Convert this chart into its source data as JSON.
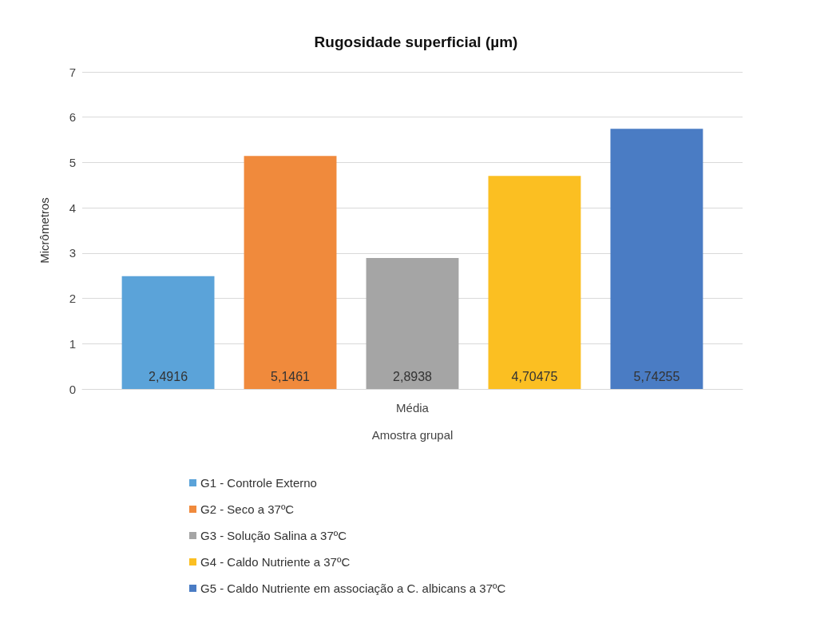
{
  "chart_data": {
    "type": "bar",
    "title": "Rugosidade superficial (µm)",
    "xlabel": "Amostra grupal",
    "ylabel": "Micrômetros",
    "categories": [
      "Média"
    ],
    "series": [
      {
        "name": "G1 - Controle Externo",
        "color": "#5ba3d9",
        "values": [
          2.4916
        ],
        "value_labels": [
          "2,4916"
        ]
      },
      {
        "name": "G2 - Seco a 37ºC",
        "color": "#f08a3c",
        "values": [
          5.1461
        ],
        "value_labels": [
          "5,1461"
        ]
      },
      {
        "name": "G3 - Solução Salina a 37ºC",
        "color": "#a5a5a5",
        "values": [
          2.8938
        ],
        "value_labels": [
          "2,8938"
        ]
      },
      {
        "name": "G4 - Caldo Nutriente a 37ºC",
        "color": "#fbbf22",
        "values": [
          4.70475
        ],
        "value_labels": [
          "4,70475"
        ]
      },
      {
        "name": "G5 - Caldo Nutriente em associação a C. albicans a 37ºC",
        "color": "#4a7cc4",
        "values": [
          5.74255
        ],
        "value_labels": [
          "5,74255"
        ]
      }
    ],
    "ylim": [
      0,
      7
    ],
    "yticks": [
      0,
      1,
      2,
      3,
      4,
      5,
      6,
      7
    ],
    "grid": "y",
    "legend": "bottom"
  }
}
